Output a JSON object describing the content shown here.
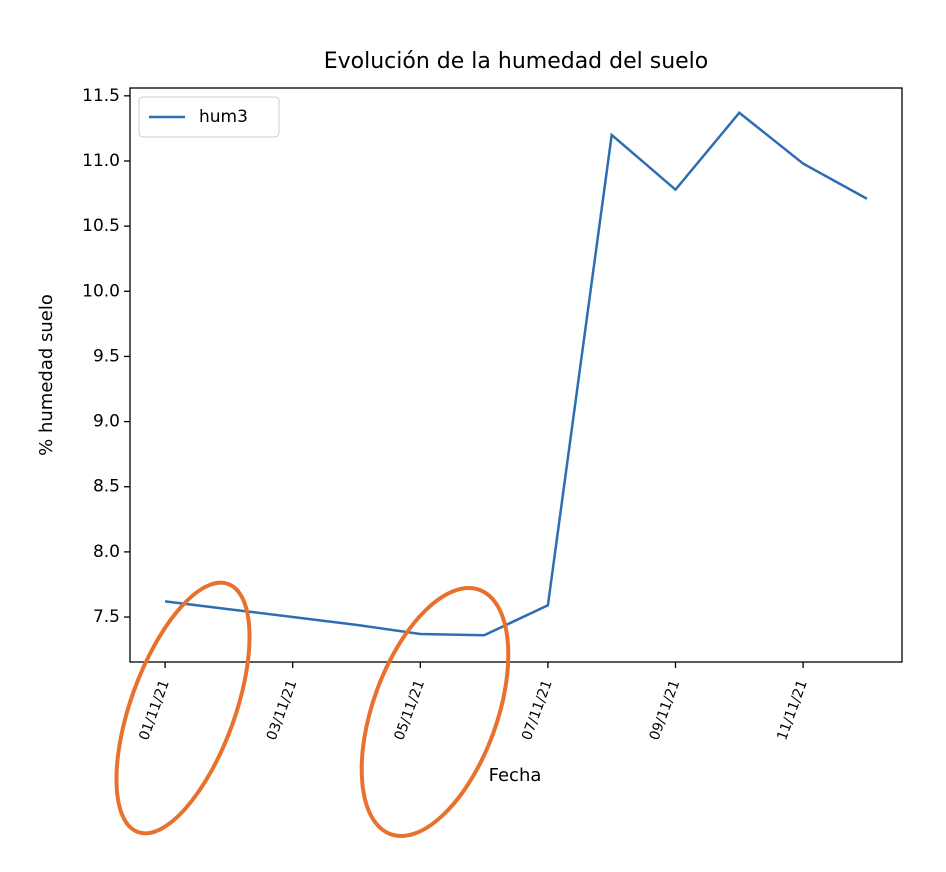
{
  "chart_data": {
    "type": "line",
    "title": "Evolución de la humedad del suelo",
    "x_label": "Fecha",
    "y_label": "% humedad suelo",
    "x": [
      "01/11/21",
      "02/11/21",
      "03/11/21",
      "04/11/21",
      "05/11/21",
      "06/11/21",
      "07/11/21",
      "08/11/21",
      "09/11/21",
      "10/11/21",
      "11/11/21",
      "12/11/21"
    ],
    "series": [
      {
        "name": "hum3",
        "color": "#2e6db4",
        "values": [
          7.62,
          7.56,
          7.5,
          7.44,
          7.37,
          7.36,
          7.59,
          11.2,
          10.78,
          11.37,
          10.98,
          10.71
        ]
      }
    ],
    "xticks": [
      "01/11/21",
      "03/11/21",
      "05/11/21",
      "07/11/21",
      "09/11/21",
      "11/11/21"
    ],
    "ylim": [
      7.155,
      11.56
    ],
    "yticks": [
      7.5,
      {
        "value": 8,
        "label": "8.0"
      },
      8.5,
      {
        "value": 9,
        "label": "9.0"
      },
      9.5,
      {
        "value": 10,
        "label": "10.0"
      },
      10.5,
      {
        "value": 11,
        "label": "11.0"
      },
      11.5
    ],
    "legend": "upper left",
    "grid": false
  }
}
